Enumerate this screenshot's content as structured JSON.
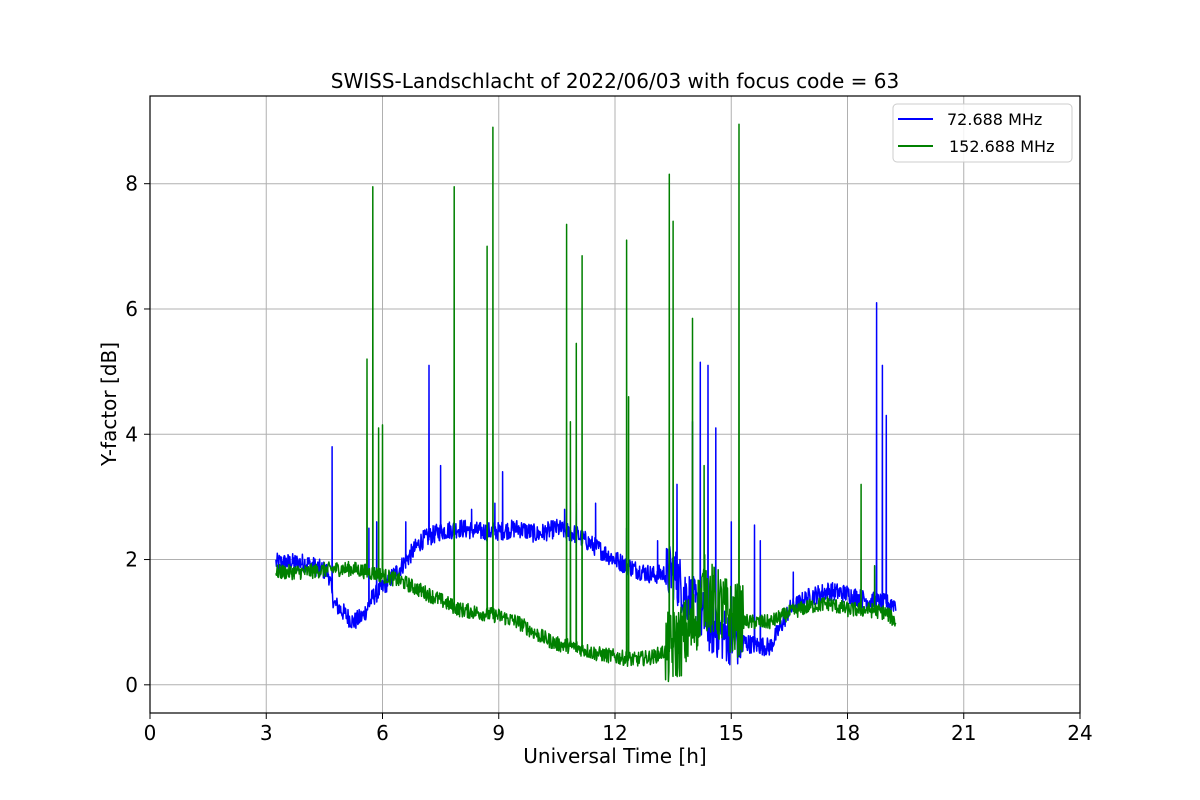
{
  "chart_data": {
    "type": "line",
    "title": "SWISS-Landschlacht of 2022/06/03 with focus code = 63",
    "xlabel": "Universal Time [h]",
    "ylabel": "Y-factor [dB]",
    "xlim": [
      0,
      24
    ],
    "ylim": [
      -0.45,
      9.4
    ],
    "xticks": [
      0,
      3,
      6,
      9,
      12,
      15,
      18,
      21,
      24
    ],
    "xtick_labels": [
      "0",
      "3",
      "6",
      "9",
      "12",
      "15",
      "18",
      "21",
      "24"
    ],
    "yticks": [
      0,
      2,
      4,
      6,
      8
    ],
    "ytick_labels": [
      "0",
      "2",
      "4",
      "6",
      "8"
    ],
    "grid": true,
    "legend_position": "top-right",
    "series": [
      {
        "name": "72.688 MHz",
        "color": "#0000ff",
        "baseline": [
          [
            3.25,
            1.95
          ],
          [
            4.0,
            1.95
          ],
          [
            4.6,
            1.8
          ],
          [
            4.75,
            1.3
          ],
          [
            5.25,
            1.0
          ],
          [
            5.5,
            1.1
          ],
          [
            5.75,
            1.4
          ],
          [
            6.0,
            1.55
          ],
          [
            6.5,
            1.9
          ],
          [
            7.0,
            2.3
          ],
          [
            7.5,
            2.45
          ],
          [
            8.0,
            2.5
          ],
          [
            8.5,
            2.45
          ],
          [
            9.0,
            2.45
          ],
          [
            9.5,
            2.5
          ],
          [
            10.0,
            2.4
          ],
          [
            10.5,
            2.5
          ],
          [
            11.0,
            2.4
          ],
          [
            11.5,
            2.2
          ],
          [
            12.0,
            2.0
          ],
          [
            12.5,
            1.85
          ],
          [
            13.0,
            1.75
          ],
          [
            13.5,
            1.8
          ],
          [
            14.0,
            1.3
          ],
          [
            14.5,
            0.9
          ],
          [
            15.0,
            0.75
          ],
          [
            15.5,
            0.65
          ],
          [
            16.0,
            0.6
          ],
          [
            16.5,
            1.2
          ],
          [
            17.0,
            1.4
          ],
          [
            17.5,
            1.5
          ],
          [
            18.0,
            1.45
          ],
          [
            18.5,
            1.35
          ],
          [
            19.0,
            1.3
          ],
          [
            19.25,
            1.3
          ]
        ],
        "spikes": [
          [
            4.7,
            3.8
          ],
          [
            5.65,
            2.5
          ],
          [
            5.85,
            2.6
          ],
          [
            6.6,
            2.6
          ],
          [
            7.2,
            5.1
          ],
          [
            7.5,
            3.5
          ],
          [
            8.3,
            2.8
          ],
          [
            8.9,
            2.9
          ],
          [
            9.1,
            3.4
          ],
          [
            10.7,
            2.8
          ],
          [
            11.0,
            2.9
          ],
          [
            11.5,
            2.9
          ],
          [
            12.3,
            2.5
          ],
          [
            13.1,
            2.3
          ],
          [
            13.6,
            3.2
          ],
          [
            14.0,
            4.2
          ],
          [
            14.2,
            5.15
          ],
          [
            14.4,
            5.1
          ],
          [
            14.6,
            4.1
          ],
          [
            15.0,
            2.6
          ],
          [
            15.6,
            2.55
          ],
          [
            15.75,
            2.3
          ],
          [
            16.6,
            1.8
          ],
          [
            18.75,
            6.1
          ],
          [
            18.9,
            5.1
          ],
          [
            19.0,
            4.3
          ]
        ],
        "noise": 0.15
      },
      {
        "name": "152.688 MHz",
        "color": "#008000",
        "baseline": [
          [
            3.25,
            1.8
          ],
          [
            4.0,
            1.8
          ],
          [
            4.75,
            1.85
          ],
          [
            5.25,
            1.85
          ],
          [
            6.0,
            1.75
          ],
          [
            6.5,
            1.65
          ],
          [
            7.0,
            1.5
          ],
          [
            7.5,
            1.35
          ],
          [
            8.0,
            1.2
          ],
          [
            8.5,
            1.15
          ],
          [
            9.0,
            1.1
          ],
          [
            9.5,
            1.0
          ],
          [
            10.0,
            0.8
          ],
          [
            10.5,
            0.65
          ],
          [
            11.0,
            0.6
          ],
          [
            11.5,
            0.5
          ],
          [
            12.0,
            0.45
          ],
          [
            12.5,
            0.4
          ],
          [
            13.0,
            0.45
          ],
          [
            13.5,
            0.6
          ],
          [
            14.0,
            0.9
          ],
          [
            14.3,
            1.5
          ],
          [
            14.6,
            1.3
          ],
          [
            15.0,
            1.05
          ],
          [
            15.5,
            1.0
          ],
          [
            16.0,
            1.0
          ],
          [
            16.5,
            1.15
          ],
          [
            17.0,
            1.25
          ],
          [
            17.5,
            1.3
          ],
          [
            18.0,
            1.2
          ],
          [
            18.5,
            1.2
          ],
          [
            19.0,
            1.15
          ],
          [
            19.25,
            1.0
          ]
        ],
        "spikes": [
          [
            5.6,
            5.2
          ],
          [
            5.75,
            7.95
          ],
          [
            5.9,
            4.1
          ],
          [
            6.0,
            4.15
          ],
          [
            7.85,
            7.95
          ],
          [
            8.7,
            7.0
          ],
          [
            8.85,
            8.9
          ],
          [
            10.75,
            7.35
          ],
          [
            10.85,
            4.2
          ],
          [
            11.0,
            5.45
          ],
          [
            11.15,
            6.85
          ],
          [
            12.3,
            7.1
          ],
          [
            12.35,
            4.6
          ],
          [
            13.4,
            8.15
          ],
          [
            13.5,
            7.4
          ],
          [
            14.0,
            5.85
          ],
          [
            14.3,
            3.5
          ],
          [
            15.2,
            8.95
          ],
          [
            18.35,
            3.2
          ],
          [
            18.7,
            1.9
          ]
        ],
        "noise": 0.12
      }
    ]
  }
}
